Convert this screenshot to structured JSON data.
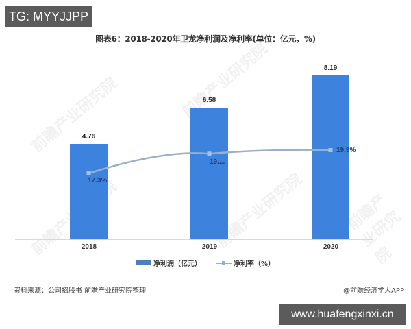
{
  "overlay": {
    "top_tag": "TG: MYYJJPP",
    "bottom_tag": "www.huafengxinxi.cn"
  },
  "chart_data": {
    "type": "bar",
    "title": "图表6：2018-2020年卫龙净利润及净利率(单位：亿元，%)",
    "categories": [
      "2018",
      "2019",
      "2020"
    ],
    "series": [
      {
        "name": "净利润（亿元）",
        "type": "bar",
        "color": "#3d82dd",
        "values": [
          4.76,
          6.58,
          8.19
        ],
        "labels": [
          "4.76",
          "6.58",
          "8.19"
        ]
      },
      {
        "name": "净利率（%）",
        "type": "line",
        "color": "#9bb0c8",
        "values": [
          17.3,
          19.5,
          19.9
        ],
        "labels": [
          "17.3%",
          "19....",
          "19.9%"
        ]
      }
    ],
    "xlabel": "",
    "ylabel": "",
    "grid": false,
    "legend_position": "bottom"
  },
  "legend": {
    "bar_label": "净利润（亿元）",
    "line_label": "净利率（%）"
  },
  "footer": {
    "source": "资料来源：公司招股书 前瞻产业研究院整理",
    "credit": "@前瞻经济学人APP"
  },
  "watermark_text": "前瞻产业研究院"
}
